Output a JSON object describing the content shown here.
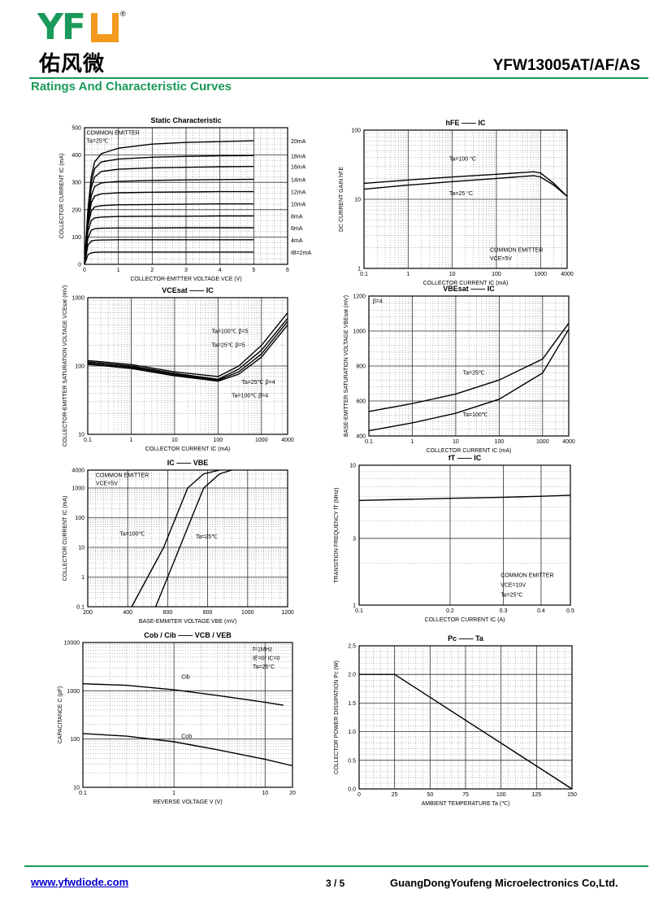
{
  "header": {
    "logo_letters": "YF",
    "logo_cn": "佑风微",
    "logo_reg": "®",
    "part_number": "YFW13005AT/AF/AS",
    "section_title": "Ratings And Characteristic Curves"
  },
  "footer": {
    "website": "www.yfwdiode.com",
    "page": "3 / 5",
    "company": "GuangDongYoufeng Microelectronics Co,Ltd."
  },
  "colors": {
    "brand_green": "#1a9a5a",
    "brand_orange": "#f39a1f",
    "link_blue": "#0000cc"
  },
  "chart_data": [
    {
      "type": "line",
      "title": "Static Characteristic",
      "xlabel": "COLLECTOR-EMITTER VOLTAGE  VCE  (V)",
      "ylabel": "COLLECTOR CURRENT  IC  (mA)",
      "xscale": "linear",
      "yscale": "linear",
      "xlim": [
        0,
        6
      ],
      "ylim": [
        0,
        500
      ],
      "xticks": [
        0,
        1,
        2,
        3,
        4,
        5,
        6
      ],
      "yticks": [
        0,
        100,
        200,
        300,
        400,
        500
      ],
      "annotations": [
        "COMMON EMITTER",
        "Ta=25℃"
      ],
      "series": [
        {
          "name": "20mA",
          "points": [
            [
              0,
              0
            ],
            [
              0.1,
              200
            ],
            [
              0.2,
              320
            ],
            [
              0.3,
              375
            ],
            [
              0.5,
              405
            ],
            [
              1,
              425
            ],
            [
              2,
              440
            ],
            [
              3,
              446
            ],
            [
              4,
              449
            ],
            [
              5,
              452
            ]
          ]
        },
        {
          "name": "18mA",
          "points": [
            [
              0,
              0
            ],
            [
              0.1,
              190
            ],
            [
              0.2,
              300
            ],
            [
              0.3,
              350
            ],
            [
              0.5,
              375
            ],
            [
              1,
              385
            ],
            [
              2,
              392
            ],
            [
              3,
              395
            ],
            [
              4,
              397
            ],
            [
              5,
              398
            ]
          ]
        },
        {
          "name": "16mA",
          "points": [
            [
              0,
              0
            ],
            [
              0.1,
              180
            ],
            [
              0.2,
              280
            ],
            [
              0.3,
              320
            ],
            [
              0.5,
              340
            ],
            [
              1,
              348
            ],
            [
              2,
              353
            ],
            [
              3,
              355
            ],
            [
              4,
              357
            ],
            [
              5,
              358
            ]
          ]
        },
        {
          "name": "14mA",
          "points": [
            [
              0,
              0
            ],
            [
              0.1,
              165
            ],
            [
              0.2,
              250
            ],
            [
              0.3,
              285
            ],
            [
              0.5,
              298
            ],
            [
              1,
              304
            ],
            [
              2,
              307
            ],
            [
              3,
              309
            ],
            [
              4,
              310
            ],
            [
              5,
              311
            ]
          ]
        },
        {
          "name": "12mA",
          "points": [
            [
              0,
              0
            ],
            [
              0.1,
              150
            ],
            [
              0.2,
              225
            ],
            [
              0.3,
              250
            ],
            [
              0.5,
              258
            ],
            [
              1,
              262
            ],
            [
              2,
              264
            ],
            [
              3,
              265
            ],
            [
              4,
              266
            ],
            [
              5,
              266
            ]
          ]
        },
        {
          "name": "10mA",
          "points": [
            [
              0,
              0
            ],
            [
              0.1,
              140
            ],
            [
              0.2,
              195
            ],
            [
              0.3,
              210
            ],
            [
              0.5,
              215
            ],
            [
              1,
              218
            ],
            [
              2,
              219
            ],
            [
              3,
              220
            ],
            [
              4,
              221
            ],
            [
              5,
              221
            ]
          ]
        },
        {
          "name": "8mA",
          "points": [
            [
              0,
              0
            ],
            [
              0.1,
              120
            ],
            [
              0.2,
              160
            ],
            [
              0.3,
              170
            ],
            [
              0.5,
              173
            ],
            [
              1,
              175
            ],
            [
              2,
              176
            ],
            [
              3,
              176
            ],
            [
              4,
              177
            ],
            [
              5,
              177
            ]
          ]
        },
        {
          "name": "6mA",
          "points": [
            [
              0,
              0
            ],
            [
              0.1,
              95
            ],
            [
              0.2,
              125
            ],
            [
              0.3,
              130
            ],
            [
              0.5,
              132
            ],
            [
              1,
              133
            ],
            [
              2,
              133
            ],
            [
              3,
              134
            ],
            [
              4,
              134
            ],
            [
              5,
              134
            ]
          ]
        },
        {
          "name": "4mA",
          "points": [
            [
              0,
              0
            ],
            [
              0.1,
              70
            ],
            [
              0.2,
              85
            ],
            [
              0.3,
              88
            ],
            [
              0.5,
              89
            ],
            [
              1,
              90
            ],
            [
              2,
              90
            ],
            [
              3,
              90
            ],
            [
              4,
              90
            ],
            [
              5,
              90
            ]
          ]
        },
        {
          "name": "IB=2mA",
          "points": [
            [
              0,
              0
            ],
            [
              0.1,
              35
            ],
            [
              0.2,
              42
            ],
            [
              0.3,
              44
            ],
            [
              0.5,
              45
            ],
            [
              1,
              45
            ],
            [
              2,
              45
            ],
            [
              3,
              45
            ],
            [
              4,
              45
            ],
            [
              5,
              45
            ]
          ]
        }
      ]
    },
    {
      "type": "line",
      "title": "hFE —— IC",
      "xlabel": "COLLECTOR CURRENT  IC  (mA)",
      "ylabel": "DC CURRENT GAIN  hFE",
      "xscale": "log",
      "yscale": "log",
      "xlim": [
        0.1,
        4000
      ],
      "ylim": [
        1,
        100
      ],
      "xticks": [
        0.1,
        1,
        10,
        100,
        1000,
        4000
      ],
      "yticks": [
        1,
        10,
        100
      ],
      "annotations": [
        "COMMON EMITTER",
        "VCE=5V"
      ],
      "series": [
        {
          "name": "Ta=100 °C",
          "points": [
            [
              0.1,
              17
            ],
            [
              1,
              19
            ],
            [
              10,
              21
            ],
            [
              100,
              23
            ],
            [
              700,
              25
            ],
            [
              1000,
              24
            ],
            [
              2000,
              17
            ],
            [
              4000,
              11
            ]
          ]
        },
        {
          "name": "Ta=25 °C",
          "points": [
            [
              0.1,
              14
            ],
            [
              1,
              16
            ],
            [
              10,
              18
            ],
            [
              100,
              20
            ],
            [
              700,
              22
            ],
            [
              1000,
              21
            ],
            [
              2000,
              16
            ],
            [
              4000,
              11
            ]
          ]
        }
      ]
    },
    {
      "type": "line",
      "title": "VCEsat —— IC",
      "xlabel": "COLLECTOR CURRENT  IC  (mA)",
      "ylabel": "COLLECTOR-EMITTER SATURATION VOLTAGE  VCEsat  (mV)",
      "xscale": "log",
      "yscale": "log",
      "xlim": [
        0.1,
        4000
      ],
      "ylim": [
        10,
        1000
      ],
      "xticks": [
        0.1,
        1,
        10,
        100,
        1000,
        4000
      ],
      "yticks": [
        10,
        100,
        1000
      ],
      "series": [
        {
          "name": "Ta=100℃ β=5",
          "points": [
            [
              0.1,
              120
            ],
            [
              1,
              105
            ],
            [
              10,
              82
            ],
            [
              100,
              70
            ],
            [
              300,
              100
            ],
            [
              1000,
              200
            ],
            [
              4000,
              600
            ]
          ]
        },
        {
          "name": "Ta=25℃ β=5",
          "points": [
            [
              0.1,
              115
            ],
            [
              1,
              100
            ],
            [
              10,
              78
            ],
            [
              100,
              64
            ],
            [
              300,
              90
            ],
            [
              1000,
              170
            ],
            [
              4000,
              500
            ]
          ]
        },
        {
          "name": "Ta=25℃ β=4",
          "points": [
            [
              0.1,
              110
            ],
            [
              1,
              96
            ],
            [
              10,
              75
            ],
            [
              100,
              62
            ],
            [
              300,
              82
            ],
            [
              1000,
              150
            ],
            [
              4000,
              450
            ]
          ]
        },
        {
          "name": "Ta=100℃ β=4",
          "points": [
            [
              0.1,
              106
            ],
            [
              1,
              92
            ],
            [
              10,
              72
            ],
            [
              100,
              60
            ],
            [
              300,
              76
            ],
            [
              1000,
              135
            ],
            [
              4000,
              400
            ]
          ]
        }
      ]
    },
    {
      "type": "line",
      "title": "VBEsat —— IC",
      "xlabel": "COLLECTOR CURRENT  IC  (mA)",
      "ylabel": "BASE-EMITTER SATURATION VOLTAGE  VBEsat  (mV)",
      "xscale": "log",
      "yscale": "linear",
      "xlim": [
        0.1,
        4000
      ],
      "ylim": [
        400,
        1200
      ],
      "xticks": [
        0.1,
        1,
        10,
        100,
        1000,
        4000
      ],
      "yticks": [
        400,
        600,
        800,
        1000,
        1200
      ],
      "annotations": [
        "β=4"
      ],
      "series": [
        {
          "name": "Ta=25℃",
          "points": [
            [
              0.1,
              540
            ],
            [
              1,
              585
            ],
            [
              10,
              640
            ],
            [
              100,
              720
            ],
            [
              1000,
              840
            ],
            [
              4000,
              1045
            ]
          ]
        },
        {
          "name": "Ta=100℃",
          "points": [
            [
              0.1,
              430
            ],
            [
              1,
              475
            ],
            [
              10,
              530
            ],
            [
              100,
              610
            ],
            [
              1000,
              760
            ],
            [
              4000,
              1010
            ]
          ]
        }
      ]
    },
    {
      "type": "line",
      "title": "IC —— VBE",
      "xlabel": "BASE-EMMITER VOLTAGE  VBE  (mV)",
      "ylabel": "COLLECTOR CURRENT  IC  (mA)",
      "xscale": "linear",
      "yscale": "log",
      "xlim": [
        200,
        1200
      ],
      "ylim": [
        0.1,
        4000
      ],
      "xticks": [
        200,
        400,
        600,
        800,
        1000,
        1200
      ],
      "yticks": [
        0.1,
        1,
        10,
        100,
        1000,
        4000
      ],
      "annotations": [
        "COMMON EMITTER",
        "VCE=5V"
      ],
      "series": [
        {
          "name": "Ta=100℃",
          "points": [
            [
              420,
              0.1
            ],
            [
              500,
              1
            ],
            [
              580,
              10
            ],
            [
              640,
              100
            ],
            [
              700,
              1000
            ],
            [
              780,
              3000
            ],
            [
              860,
              4000
            ]
          ]
        },
        {
          "name": "Ta=25℃",
          "points": [
            [
              540,
              0.1
            ],
            [
              600,
              1
            ],
            [
              660,
              10
            ],
            [
              720,
              100
            ],
            [
              780,
              1000
            ],
            [
              860,
              3000
            ],
            [
              920,
              4000
            ]
          ]
        }
      ]
    },
    {
      "type": "line",
      "title": "fT —— IC",
      "xlabel": "COLLECTOR CURRENT  IC  (A)",
      "ylabel": "TRANSITION FREQUENCY  fT  (MHz)",
      "xscale": "log",
      "yscale": "log",
      "xlim": [
        0.1,
        0.5
      ],
      "ylim": [
        1,
        10
      ],
      "xticks": [
        0.1,
        0.2,
        0.3,
        0.4,
        0.5
      ],
      "yticks": [
        1,
        3,
        10
      ],
      "annotations": [
        "COMMON EMITTER",
        "VCE=10V",
        "Ta=25°C"
      ],
      "series": [
        {
          "name": "fT",
          "points": [
            [
              0.1,
              5.6
            ],
            [
              0.2,
              5.8
            ],
            [
              0.3,
              5.9
            ],
            [
              0.4,
              6.0
            ],
            [
              0.5,
              6.1
            ]
          ]
        }
      ]
    },
    {
      "type": "line",
      "title": "Cob / Cib —— VCB / VEB",
      "xlabel": "REVERSE VOLTAGE  V  (V)",
      "ylabel": "CAPACITANCE  C  (pF)",
      "xscale": "log",
      "yscale": "log",
      "xlim": [
        0.1,
        20
      ],
      "ylim": [
        10,
        10000
      ],
      "xticks": [
        0.1,
        1,
        10,
        20
      ],
      "yticks": [
        10,
        100,
        1000,
        10000
      ],
      "annotations": [
        "f=1MHz",
        "IE=0/ IC=0",
        "Ta=25°C"
      ],
      "series": [
        {
          "name": "Cib",
          "points": [
            [
              0.1,
              1400
            ],
            [
              0.3,
              1300
            ],
            [
              1,
              1050
            ],
            [
              3,
              800
            ],
            [
              10,
              580
            ],
            [
              16,
              500
            ]
          ]
        },
        {
          "name": "Cob",
          "points": [
            [
              0.1,
              130
            ],
            [
              0.3,
              115
            ],
            [
              1,
              88
            ],
            [
              3,
              60
            ],
            [
              10,
              38
            ],
            [
              20,
              28
            ]
          ]
        }
      ]
    },
    {
      "type": "line",
      "title": "Pc —— Ta",
      "xlabel": "AMBIENT TEMPERATURE  Ta  (℃)",
      "ylabel": "COLLECTOR POWER DISSIPATION  Pc  (W)",
      "xscale": "linear",
      "yscale": "linear",
      "xlim": [
        0,
        150
      ],
      "ylim": [
        0,
        2.5
      ],
      "xticks": [
        0,
        25,
        50,
        75,
        100,
        125,
        150
      ],
      "yticks": [
        0.0,
        0.5,
        1.0,
        1.5,
        2.0,
        2.5
      ],
      "series": [
        {
          "name": "Pc",
          "points": [
            [
              0,
              2.0
            ],
            [
              25,
              2.0
            ],
            [
              150,
              0.0
            ]
          ]
        }
      ]
    }
  ]
}
